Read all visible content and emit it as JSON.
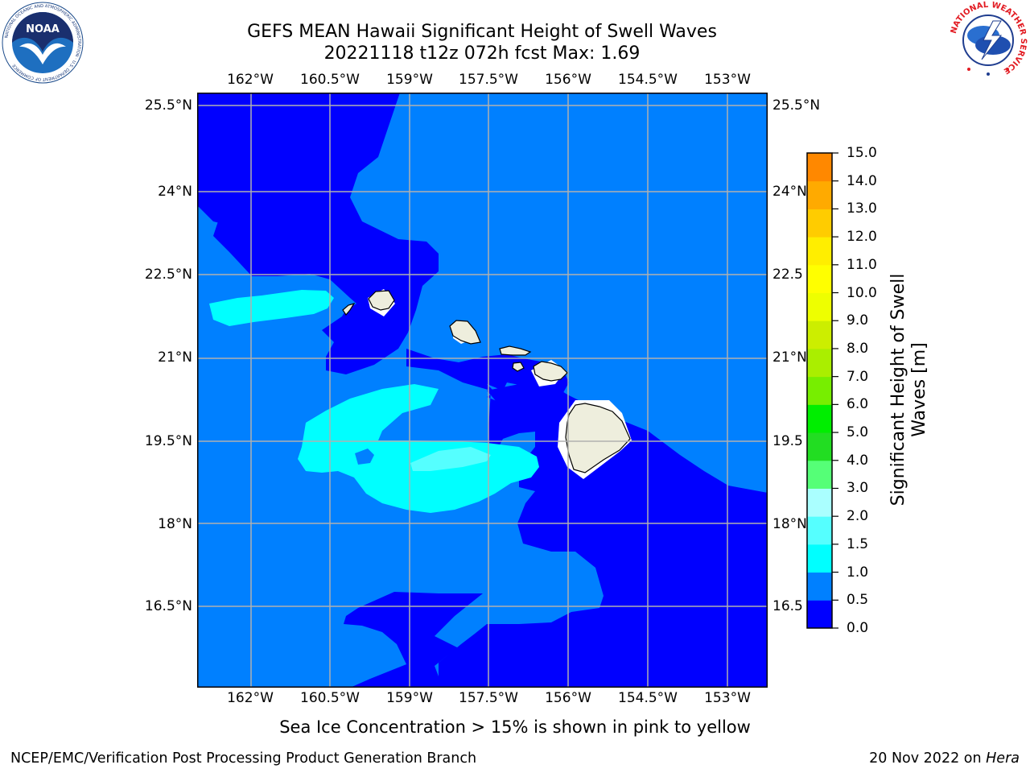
{
  "title": {
    "line1": "GEFS MEAN Hawaii Significant Height of Swell Waves",
    "line2": "20221118 t12z 072h fcst   Max: 1.69"
  },
  "map": {
    "lon_ticks": [
      "162°W",
      "160.5°W",
      "159°W",
      "157.5°W",
      "156°W",
      "154.5°W",
      "153°W"
    ],
    "lat_ticks": [
      "25.5°N",
      "24°N",
      "22.5°N",
      "21°N",
      "19.5°N",
      "18°N",
      "16.5°N"
    ],
    "lat_ticks_right": [
      "25.5°N",
      "24°N",
      "22.5",
      "21°N",
      "19.5",
      "18°N",
      "16.5"
    ],
    "colors": {
      "band_0": "#0000ff",
      "band_1": "#0080ff",
      "band_2": "#00ffff",
      "band_3": "#55ffff",
      "land": "#eeeedd",
      "grid": "#b0b0b0"
    }
  },
  "colorbar": {
    "label_line1": "Significant Height of Swell",
    "label_line2": "Waves [m]",
    "ticks": [
      "15.0",
      "14.0",
      "13.0",
      "12.0",
      "11.0",
      "10.0",
      "9.0",
      "8.0",
      "7.0",
      "6.0",
      "5.0",
      "4.0",
      "3.0",
      "2.0",
      "1.5",
      "1.0",
      "0.5",
      "0.0"
    ],
    "colors": [
      "#0000ff",
      "#0080ff",
      "#00ffff",
      "#55ffff",
      "#aaffff",
      "#55ff77",
      "#22dd22",
      "#00ee00",
      "#77ee00",
      "#aaee00",
      "#ccee00",
      "#eeff00",
      "#ffff00",
      "#ffee00",
      "#ffcc00",
      "#ffaa00",
      "#ff8800",
      "#ff5500",
      "#ff2200",
      "#ff0000"
    ]
  },
  "logos": {
    "noaa_text": "NOAA",
    "noaa_ring": "NATIONAL OCEANIC AND ATMOSPHERIC ADMINISTRATION · U.S. DEPARTMENT OF COMMERCE",
    "nws_ring": "NATIONAL WEATHER SERVICE"
  },
  "notes": {
    "ice": "Sea Ice Concentration > 15% is shown in pink to yellow",
    "left": "NCEP/EMC/Verification Post Processing Product Generation Branch",
    "right_prefix": "20 Nov 2022 on ",
    "right_italic": "Hera"
  }
}
